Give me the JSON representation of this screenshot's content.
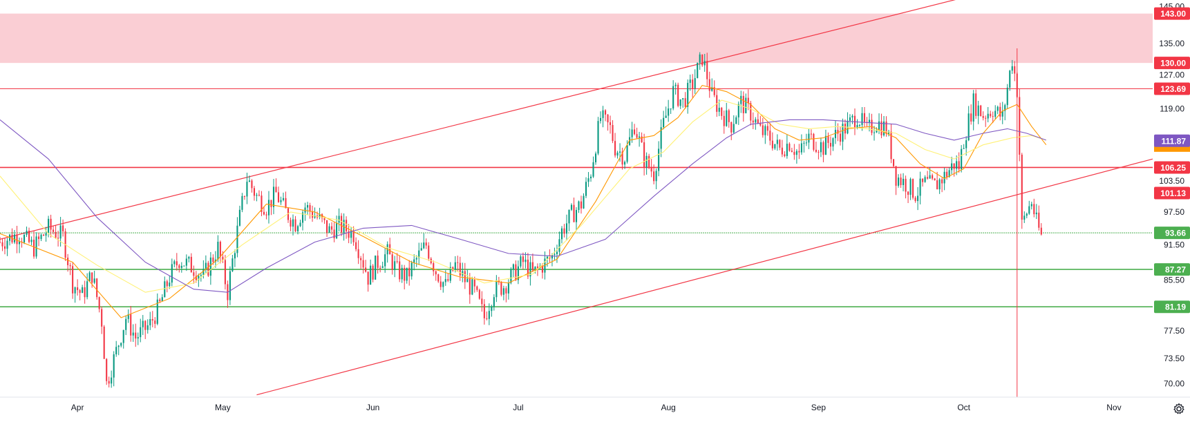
{
  "colors": {
    "resistance": "#f23645",
    "support": "#4caf50",
    "zone": "#f9c6cc",
    "up": "#089981",
    "down": "#f23645",
    "ma_fast": "#ff9800",
    "ma_mid": "#fff176",
    "ma_slow": "#7e57c2",
    "price_badge": "#7e57c2",
    "axis_text": "#131722"
  },
  "settings_icon": "gear-icon",
  "chart_data": {
    "type": "candlestick",
    "x_axis": {
      "labels": [
        "Apr",
        "May",
        "Jun",
        "Jul",
        "Aug",
        "Sep",
        "Oct",
        "Nov"
      ],
      "label_days": [
        31,
        61,
        92,
        122,
        153,
        184,
        214,
        245
      ],
      "range_days": [
        15,
        253
      ]
    },
    "y_axis": {
      "ticks": [
        "145.00",
        "135.00",
        "127.00",
        "119.00",
        "103.50",
        "97.50",
        "91.50",
        "85.50",
        "77.50",
        "73.50",
        "70.00"
      ],
      "tick_values": [
        145.0,
        135.0,
        127.0,
        119.0,
        103.5,
        97.5,
        91.5,
        85.5,
        77.5,
        73.5,
        70.0
      ],
      "range": [
        68.2,
        146.8
      ],
      "scale": "log"
    },
    "resistance_zone": {
      "from": 130.0,
      "to": 143.0
    },
    "horizontal_levels": [
      {
        "value": 143.0,
        "label": "143.00",
        "kind": "resistance"
      },
      {
        "value": 130.0,
        "label": "130.00",
        "kind": "resistance"
      },
      {
        "value": 123.69,
        "label": "123.69",
        "kind": "resistance"
      },
      {
        "value": 106.25,
        "label": "106.25",
        "kind": "resistance"
      },
      {
        "value": 93.66,
        "label": "93.66",
        "kind": "support"
      },
      {
        "value": 87.27,
        "label": "87.27",
        "kind": "support"
      },
      {
        "value": 81.19,
        "label": "81.19",
        "kind": "support"
      }
    ],
    "price_badges": [
      {
        "value": 101.13,
        "label": "101.13",
        "kind": "resistance"
      },
      {
        "value": 111.87,
        "label": "111.87",
        "kind": "current"
      }
    ],
    "trend_channel": {
      "upper": {
        "x1": 15,
        "y1": 92.5,
        "x2": 214,
        "y2": 147.5
      },
      "lower": {
        "x1": 68,
        "y1": 68.5,
        "x2": 253,
        "y2": 108.0
      }
    },
    "event_line_day": 225,
    "close_path": [
      [
        15,
        92.0
      ],
      [
        19,
        93.5
      ],
      [
        22,
        91.0
      ],
      [
        25,
        94.5
      ],
      [
        28,
        93.0
      ],
      [
        30,
        85.0
      ],
      [
        32,
        83.0
      ],
      [
        34,
        86.5
      ],
      [
        36,
        79.0
      ],
      [
        37,
        70.0
      ],
      [
        39,
        74.5
      ],
      [
        41,
        79.5
      ],
      [
        43,
        76.5
      ],
      [
        46,
        78.5
      ],
      [
        48,
        81.5
      ],
      [
        50,
        86.0
      ],
      [
        52,
        89.0
      ],
      [
        55,
        87.5
      ],
      [
        57,
        86.0
      ],
      [
        60,
        91.0
      ],
      [
        62,
        83.5
      ],
      [
        64,
        94.0
      ],
      [
        66,
        104.0
      ],
      [
        68,
        100.5
      ],
      [
        70,
        98.5
      ],
      [
        72,
        101.0
      ],
      [
        74,
        97.5
      ],
      [
        76,
        95.5
      ],
      [
        78,
        98.5
      ],
      [
        80,
        97.0
      ],
      [
        83,
        94.0
      ],
      [
        85,
        95.0
      ],
      [
        88,
        93.5
      ],
      [
        91,
        86.0
      ],
      [
        93,
        88.5
      ],
      [
        95,
        90.0
      ],
      [
        97,
        87.0
      ],
      [
        99,
        86.0
      ],
      [
        101,
        89.0
      ],
      [
        103,
        91.5
      ],
      [
        105,
        87.0
      ],
      [
        107,
        84.5
      ],
      [
        109,
        88.0
      ],
      [
        111,
        85.5
      ],
      [
        113,
        83.5
      ],
      [
        115,
        79.5
      ],
      [
        117,
        84.0
      ],
      [
        119,
        84.5
      ],
      [
        121,
        86.5
      ],
      [
        123,
        88.5
      ],
      [
        125,
        86.5
      ],
      [
        127,
        88.0
      ],
      [
        129,
        89.5
      ],
      [
        131,
        94.0
      ],
      [
        133,
        97.0
      ],
      [
        135,
        99.0
      ],
      [
        137,
        105.5
      ],
      [
        139,
        117.0
      ],
      [
        141,
        114.5
      ],
      [
        142,
        110.5
      ],
      [
        144,
        108.5
      ],
      [
        146,
        115.5
      ],
      [
        148,
        108.0
      ],
      [
        150,
        105.0
      ],
      [
        152,
        115.5
      ],
      [
        154,
        123.0
      ],
      [
        156,
        120.5
      ],
      [
        158,
        125.0
      ],
      [
        160,
        131.5
      ],
      [
        162,
        122.0
      ],
      [
        164,
        118.0
      ],
      [
        166,
        115.5
      ],
      [
        168,
        120.5
      ],
      [
        170,
        118.0
      ],
      [
        172,
        114.0
      ],
      [
        174,
        112.5
      ],
      [
        176,
        110.0
      ],
      [
        178,
        111.5
      ],
      [
        180,
        109.0
      ],
      [
        182,
        112.5
      ],
      [
        185,
        110.5
      ],
      [
        188,
        113.5
      ],
      [
        190,
        115.0
      ],
      [
        192,
        117.5
      ],
      [
        194,
        114.0
      ],
      [
        196,
        116.0
      ],
      [
        198,
        114.5
      ],
      [
        200,
        104.5
      ],
      [
        202,
        103.0
      ],
      [
        204,
        101.0
      ],
      [
        206,
        103.0
      ],
      [
        208,
        102.5
      ],
      [
        210,
        104.5
      ],
      [
        212,
        107.0
      ],
      [
        213,
        106.5
      ],
      [
        214,
        112.0
      ],
      [
        216,
        120.5
      ],
      [
        218,
        117.5
      ],
      [
        220,
        119.0
      ],
      [
        222,
        117.0
      ],
      [
        224,
        131.0
      ],
      [
        225,
        123.5
      ],
      [
        226,
        95.0
      ],
      [
        227,
        97.5
      ],
      [
        228,
        99.5
      ],
      [
        229,
        95.5
      ],
      [
        230,
        93.0
      ]
    ],
    "series": [
      {
        "kind": "ma_fast",
        "values": [
          [
            15,
            93.5
          ],
          [
            30,
            88.5
          ],
          [
            40,
            79.5
          ],
          [
            50,
            82.5
          ],
          [
            60,
            89.0
          ],
          [
            70,
            99.0
          ],
          [
            80,
            97.5
          ],
          [
            90,
            93.0
          ],
          [
            100,
            88.5
          ],
          [
            110,
            86.0
          ],
          [
            120,
            85.0
          ],
          [
            130,
            89.0
          ],
          [
            138,
            99.5
          ],
          [
            145,
            112.0
          ],
          [
            150,
            113.0
          ],
          [
            155,
            117.0
          ],
          [
            160,
            124.5
          ],
          [
            165,
            123.0
          ],
          [
            170,
            120.0
          ],
          [
            175,
            114.5
          ],
          [
            180,
            112.0
          ],
          [
            185,
            112.5
          ],
          [
            190,
            114.5
          ],
          [
            195,
            115.0
          ],
          [
            200,
            112.5
          ],
          [
            205,
            107.0
          ],
          [
            210,
            104.0
          ],
          [
            214,
            106.0
          ],
          [
            218,
            113.5
          ],
          [
            222,
            118.5
          ],
          [
            225,
            120.0
          ],
          [
            228,
            115.0
          ],
          [
            231,
            111.0
          ]
        ]
      },
      {
        "kind": "ma_mid",
        "values": [
          [
            15,
            104.5
          ],
          [
            25,
            93.5
          ],
          [
            35,
            88.0
          ],
          [
            45,
            83.5
          ],
          [
            55,
            85.0
          ],
          [
            65,
            91.5
          ],
          [
            75,
            97.5
          ],
          [
            85,
            96.0
          ],
          [
            95,
            91.0
          ],
          [
            105,
            88.5
          ],
          [
            115,
            85.0
          ],
          [
            125,
            86.5
          ],
          [
            135,
            95.0
          ],
          [
            145,
            106.0
          ],
          [
            152,
            109.5
          ],
          [
            158,
            116.0
          ],
          [
            164,
            121.0
          ],
          [
            170,
            119.0
          ],
          [
            176,
            115.5
          ],
          [
            182,
            114.5
          ],
          [
            188,
            115.0
          ],
          [
            194,
            114.5
          ],
          [
            200,
            113.5
          ],
          [
            206,
            110.0
          ],
          [
            212,
            108.0
          ],
          [
            218,
            111.0
          ],
          [
            224,
            112.5
          ],
          [
            228,
            113.0
          ],
          [
            231,
            112.0
          ]
        ]
      },
      {
        "kind": "ma_slow",
        "values": [
          [
            15,
            116.5
          ],
          [
            25,
            108.0
          ],
          [
            35,
            96.5
          ],
          [
            45,
            88.5
          ],
          [
            55,
            84.0
          ],
          [
            62,
            83.5
          ],
          [
            70,
            87.5
          ],
          [
            80,
            92.0
          ],
          [
            90,
            94.5
          ],
          [
            100,
            95.0
          ],
          [
            110,
            92.5
          ],
          [
            120,
            90.0
          ],
          [
            130,
            89.5
          ],
          [
            140,
            92.5
          ],
          [
            150,
            100.5
          ],
          [
            158,
            107.0
          ],
          [
            165,
            112.5
          ],
          [
            170,
            115.5
          ],
          [
            178,
            116.5
          ],
          [
            185,
            116.5
          ],
          [
            192,
            116.0
          ],
          [
            200,
            115.5
          ],
          [
            206,
            113.5
          ],
          [
            212,
            112.0
          ],
          [
            218,
            113.5
          ],
          [
            223,
            114.5
          ],
          [
            227,
            113.5
          ],
          [
            231,
            112.0
          ]
        ]
      }
    ]
  }
}
